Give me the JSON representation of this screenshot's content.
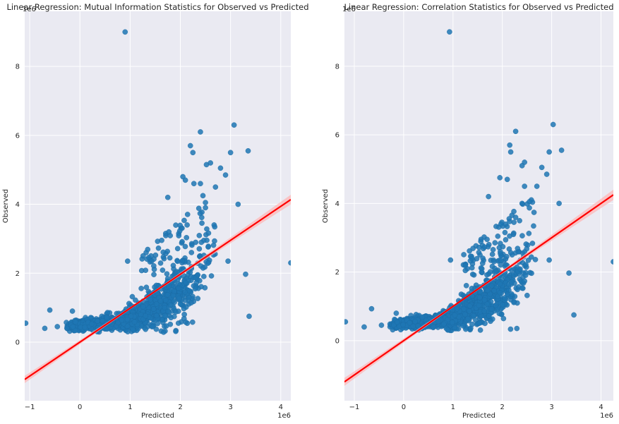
{
  "chart_data": [
    {
      "type": "scatter",
      "title": "Linear Regression: Mutual Information Statistics for Observed vs Predicted",
      "xlabel": "Predicted",
      "ylabel": "Observed",
      "x_scale_label": "1e6",
      "y_scale_label": "1e6",
      "xlim": [
        -1.1,
        4.2
      ],
      "ylim": [
        -1.7,
        9.6
      ],
      "xticks": [
        -1,
        0,
        1,
        2,
        3,
        4
      ],
      "yticks": [
        0,
        2,
        4,
        6,
        8
      ],
      "grid": true,
      "legend": "none",
      "point_color": "#1f77b4",
      "line_color": "#ff0000",
      "ci_color": "#ffb3b3",
      "regression": {
        "slope": 0.985,
        "intercept": 0.0,
        "ci_halfwidth_at_edges": 0.14
      },
      "notable_points": [
        [
          0.9,
          9.0
        ],
        [
          3.07,
          6.3
        ],
        [
          2.4,
          6.1
        ],
        [
          2.2,
          5.7
        ],
        [
          2.25,
          5.5
        ],
        [
          3.35,
          5.55
        ],
        [
          3.0,
          5.5
        ],
        [
          2.52,
          5.15
        ],
        [
          2.6,
          5.2
        ],
        [
          2.8,
          5.05
        ],
        [
          2.9,
          4.85
        ],
        [
          2.05,
          4.8
        ],
        [
          2.1,
          4.7
        ],
        [
          2.27,
          4.6
        ],
        [
          2.4,
          4.6
        ],
        [
          2.7,
          4.5
        ],
        [
          1.75,
          4.2
        ],
        [
          2.5,
          4.05
        ],
        [
          2.5,
          3.9
        ],
        [
          3.15,
          4.0
        ],
        [
          2.45,
          4.25
        ],
        [
          0.95,
          2.35
        ],
        [
          2.95,
          2.35
        ],
        [
          3.3,
          1.97
        ],
        [
          3.37,
          0.75
        ],
        [
          4.2,
          2.3
        ],
        [
          -1.08,
          0.55
        ],
        [
          -0.6,
          0.93
        ],
        [
          -0.7,
          0.4
        ],
        [
          -0.15,
          0.9
        ],
        [
          -0.45,
          0.45
        ]
      ],
      "bulk_cluster": {
        "description": "dense cluster along trend",
        "x_range": [
          -0.3,
          2.7
        ],
        "y_center_formula": "0.5 + 0.35*(x-0.5) growing above x=1"
      }
    },
    {
      "type": "scatter",
      "title": "Linear Regression: Correlation Statistics for Observed vs Predicted",
      "xlabel": "Predicted",
      "ylabel": "Observed",
      "x_scale_label": "1e6",
      "y_scale_label": "1e6",
      "xlim": [
        -1.2,
        4.25
      ],
      "ylim": [
        -1.75,
        9.6
      ],
      "xticks": [
        -1,
        0,
        1,
        2,
        3,
        4
      ],
      "yticks": [
        0,
        2,
        4,
        6,
        8
      ],
      "grid": true,
      "legend": "none",
      "point_color": "#1f77b4",
      "line_color": "#ff0000",
      "ci_color": "#ffb3b3",
      "regression": {
        "slope": 1.0,
        "intercept": 0.0,
        "ci_halfwidth_at_edges": 0.15
      },
      "notable_points": [
        [
          0.93,
          9.0
        ],
        [
          3.03,
          6.3
        ],
        [
          2.27,
          6.1
        ],
        [
          2.15,
          5.7
        ],
        [
          2.17,
          5.5
        ],
        [
          3.2,
          5.55
        ],
        [
          2.95,
          5.5
        ],
        [
          2.45,
          5.2
        ],
        [
          2.4,
          5.1
        ],
        [
          2.8,
          5.05
        ],
        [
          2.9,
          4.85
        ],
        [
          1.95,
          4.75
        ],
        [
          2.1,
          4.7
        ],
        [
          2.45,
          4.5
        ],
        [
          2.7,
          4.5
        ],
        [
          1.72,
          4.2
        ],
        [
          2.4,
          4.0
        ],
        [
          2.55,
          4.05
        ],
        [
          3.15,
          4.0
        ],
        [
          0.95,
          2.35
        ],
        [
          2.95,
          2.35
        ],
        [
          3.35,
          1.97
        ],
        [
          3.45,
          0.75
        ],
        [
          4.25,
          2.3
        ],
        [
          -1.18,
          0.55
        ],
        [
          -0.65,
          0.93
        ],
        [
          -0.8,
          0.4
        ],
        [
          -0.15,
          0.8
        ],
        [
          -0.45,
          0.45
        ]
      ],
      "bulk_cluster": {
        "description": "dense cluster along trend",
        "x_range": [
          -0.3,
          2.7
        ],
        "y_center_formula": "0.5 + 0.35*(x-0.5) growing above x=1"
      }
    }
  ]
}
